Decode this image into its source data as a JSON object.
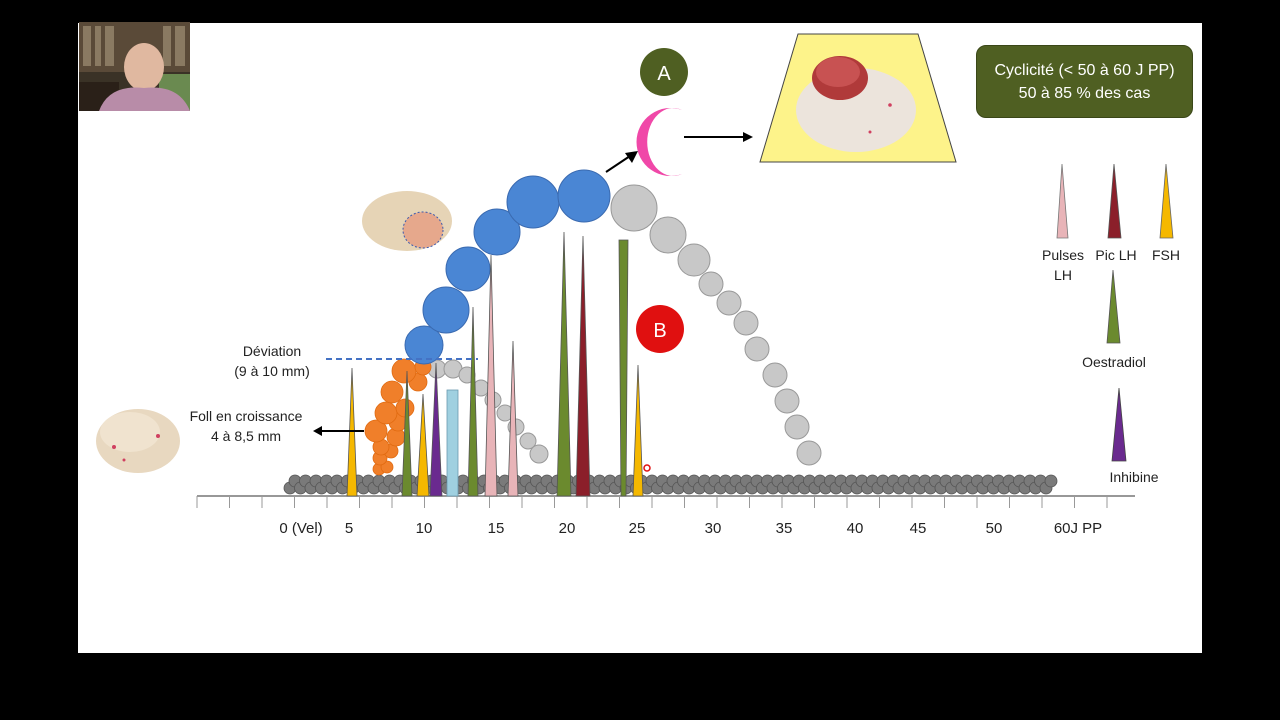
{
  "summary_box": {
    "line1": "Cyclicité (< 50 à 60 J PP)",
    "line2": "50 à 85 % des cas"
  },
  "markers": {
    "a": "A",
    "b": "B"
  },
  "deviation": {
    "line1": "Déviation",
    "line2": "(9 à 10 mm)"
  },
  "growing_follicles": {
    "line1": "Foll en croissance",
    "line2": "4 à 8,5 mm"
  },
  "axis_ticks": [
    "0 (Vel)",
    "5",
    "10",
    "15",
    "20",
    "25",
    "30",
    "35",
    "40",
    "45",
    "50",
    "60J PP"
  ],
  "legend": {
    "pulses_lh_1": "Pulses",
    "pulses_lh_2": "LH",
    "pic_lh": "Pic LH",
    "fsh": "FSH",
    "oestradiol": "Oestradiol",
    "inhibine": "Inhibine"
  },
  "colors": {
    "dominant_follicle": "#4a86d4",
    "atretic_follicle": "#c8c8c8",
    "recruited_follicle": "#f07f2a",
    "small_follicle": "#7a7a7a",
    "pulses_lh": "#e8b4b8",
    "pic_lh": "#8b1f2a",
    "fsh": "#f5b800",
    "oestradiol": "#6b8a2e",
    "inhibine": "#6a2a8f",
    "corpus_luteum": "#f048a8",
    "marker_a": "#4f5f22",
    "marker_b": "#e01010",
    "summary_box": "#4f5f22"
  }
}
